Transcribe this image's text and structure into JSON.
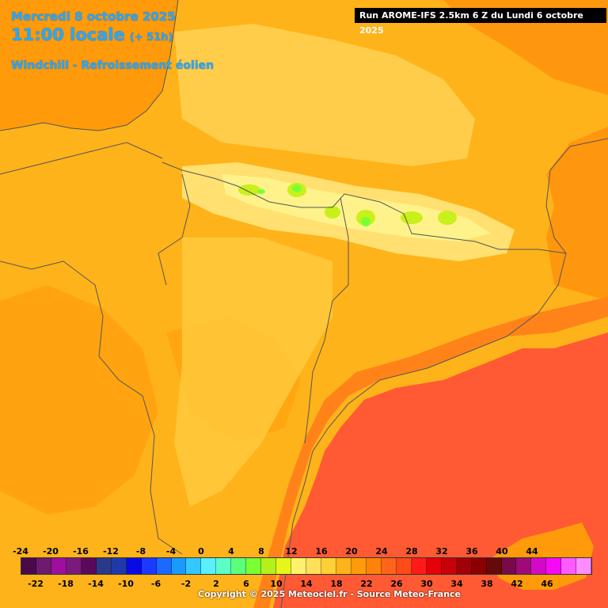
{
  "header": {
    "date": "Mercredi 8 octobre 2025",
    "time": "11:00 locale",
    "lead": "(+ 51h)",
    "parameter": "Windchill - Refroissement éolien",
    "run": "Run AROME-IFS 2.5km 6 Z du Lundi 6 octobre 2025"
  },
  "legend": {
    "top_labels": [
      "-24",
      "-20",
      "-16",
      "-12",
      "-8",
      "-4",
      "0",
      "4",
      "8",
      "12",
      "16",
      "20",
      "24",
      "28",
      "32",
      "36",
      "40",
      "44"
    ],
    "bottom_labels": [
      "-22",
      "-18",
      "-14",
      "-10",
      "-6",
      "-2",
      "2",
      "6",
      "10",
      "14",
      "18",
      "22",
      "26",
      "30",
      "34",
      "38",
      "42",
      "46"
    ],
    "colors": [
      "#4a0a4a",
      "#6e1a6e",
      "#9e0f9e",
      "#7a1a7a",
      "#5a0a5a",
      "#2a3a8a",
      "#1f3aa8",
      "#0a0ae6",
      "#1a3aff",
      "#1a6aff",
      "#1a9aff",
      "#33c8ff",
      "#5af0ff",
      "#5affc8",
      "#5aff7a",
      "#7aff33",
      "#b4f01a",
      "#e6f51a",
      "#fff06e",
      "#ffe05a",
      "#ffd033",
      "#ffb31a",
      "#ff9a0a",
      "#ff820a",
      "#ff641a",
      "#ff4a1a",
      "#ff1a1a",
      "#e6000a",
      "#c8000a",
      "#a0000a",
      "#8a0000",
      "#640a0a",
      "#780a4a",
      "#a00a78",
      "#d20ac8",
      "#f50af5",
      "#ff5aff",
      "#ff8cff"
    ]
  },
  "copyright": "Copyright © 2025 Meteociel.fr - Source Meteo-France"
}
